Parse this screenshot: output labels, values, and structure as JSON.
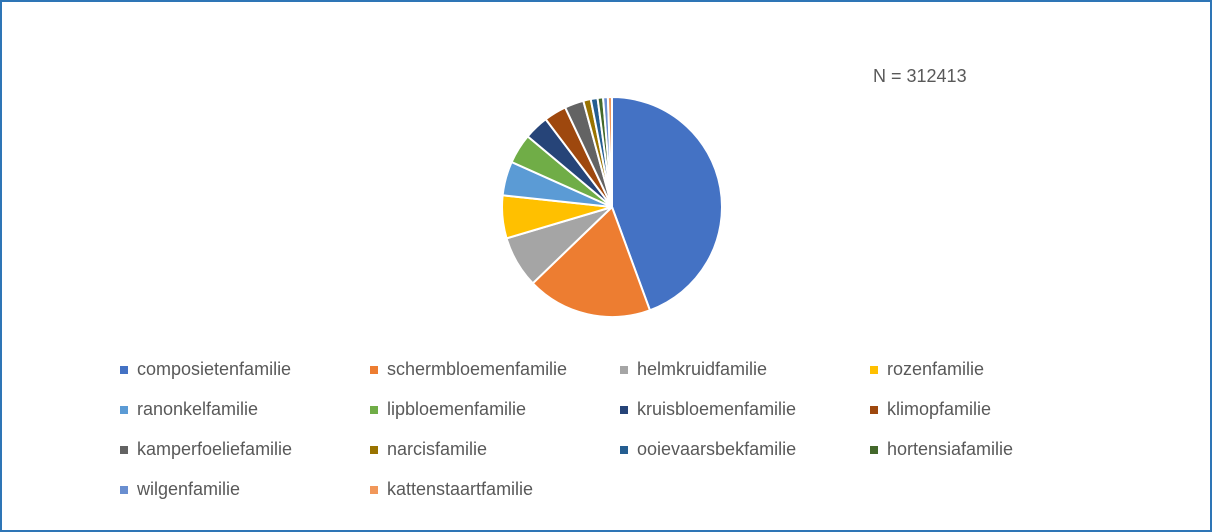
{
  "chart_data": {
    "type": "pie",
    "annotation": "N = 312413",
    "categories": [
      "composietenfamilie",
      "schermbloemenfamilie",
      "helmkruidfamilie",
      "rozenfamilie",
      "ranonkelfamilie",
      "lipbloemenfamilie",
      "kruisbloemenfamilie",
      "klimopfamilie",
      "kamperfoeliefamilie",
      "narcisfamilie",
      "ooievaarsbekfamilie",
      "hortensiafamilie",
      "wilgenfamilie",
      "kattenstaartfamilie"
    ],
    "values": [
      44.4,
      18.4,
      7.6,
      6.3,
      5.0,
      4.4,
      3.6,
      3.3,
      2.8,
      1.1,
      1.0,
      0.8,
      0.7,
      0.6
    ],
    "colors": [
      "#4472c4",
      "#ed7d31",
      "#a5a5a5",
      "#ffc000",
      "#5b9bd5",
      "#70ad47",
      "#264478",
      "#9e480e",
      "#636363",
      "#997300",
      "#255e91",
      "#43682b",
      "#698ed0",
      "#f1975a"
    ],
    "legend": "bottom"
  }
}
